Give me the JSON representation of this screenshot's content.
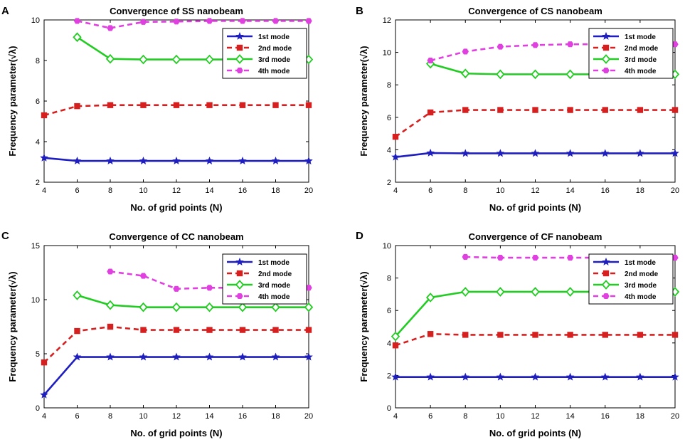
{
  "chart_data": [
    {
      "type": "line",
      "panel_label": "A",
      "title": "Convergence of SS nanobeam",
      "xlabel": "No. of grid points (N)",
      "ylabel": "Frequency parameter(√λ)",
      "xlim": [
        4,
        20
      ],
      "ylim": [
        2,
        10
      ],
      "xticks": [
        4,
        6,
        8,
        10,
        12,
        14,
        16,
        18,
        20
      ],
      "yticks": [
        2,
        4,
        6,
        8,
        10
      ],
      "xtick_labels": [
        "4",
        "6",
        "8",
        "10",
        "12",
        "14",
        "16",
        "18",
        "20"
      ],
      "ytick_labels": [
        "2",
        "4",
        "6",
        "8",
        "10"
      ],
      "legend_position": "top-right",
      "series": [
        {
          "name": "1st mode",
          "color": "#1f1fbf",
          "line": "solid",
          "marker": "star",
          "x": [
            4,
            6,
            8,
            10,
            12,
            14,
            16,
            18,
            20
          ],
          "values": [
            3.2,
            3.05,
            3.05,
            3.05,
            3.05,
            3.05,
            3.05,
            3.05,
            3.05
          ]
        },
        {
          "name": "2nd mode",
          "color": "#d62020",
          "line": "dashed",
          "marker": "square",
          "x": [
            4,
            6,
            8,
            10,
            12,
            14,
            16,
            18,
            20
          ],
          "values": [
            5.3,
            5.75,
            5.8,
            5.8,
            5.8,
            5.8,
            5.8,
            5.8,
            5.8
          ]
        },
        {
          "name": "3rd mode",
          "color": "#22cc22",
          "line": "solid",
          "marker": "diamond",
          "x": [
            6,
            8,
            10,
            12,
            14,
            16,
            18,
            20
          ],
          "values": [
            9.15,
            8.08,
            8.05,
            8.05,
            8.05,
            8.05,
            8.05,
            8.05
          ]
        },
        {
          "name": "4th mode",
          "color": "#e040e0",
          "line": "dashed",
          "marker": "hexagon",
          "x": [
            6,
            8,
            10,
            12,
            14,
            16,
            18,
            20
          ],
          "values": [
            9.95,
            9.6,
            9.9,
            9.92,
            9.95,
            9.95,
            9.95,
            9.95
          ]
        }
      ]
    },
    {
      "type": "line",
      "panel_label": "B",
      "title": "Convergence of CS nanobeam",
      "xlabel": "No. of grid points (N)",
      "ylabel": "Frequency parameter(√λ)",
      "xlim": [
        4,
        20
      ],
      "ylim": [
        2,
        12
      ],
      "xticks": [
        4,
        6,
        8,
        10,
        12,
        14,
        16,
        18,
        20
      ],
      "yticks": [
        2,
        4,
        6,
        8,
        10,
        12
      ],
      "xtick_labels": [
        "4",
        "6",
        "8",
        "10",
        "12",
        "14",
        "16",
        "18",
        "20"
      ],
      "ytick_labels": [
        "2",
        "4",
        "6",
        "8",
        "10",
        "12"
      ],
      "legend_position": "top-right",
      "series": [
        {
          "name": "1st mode",
          "color": "#1f1fbf",
          "line": "solid",
          "marker": "star",
          "x": [
            4,
            6,
            8,
            10,
            12,
            14,
            16,
            18,
            20
          ],
          "values": [
            3.55,
            3.8,
            3.78,
            3.78,
            3.78,
            3.78,
            3.78,
            3.78,
            3.78
          ]
        },
        {
          "name": "2nd mode",
          "color": "#d62020",
          "line": "dashed",
          "marker": "square",
          "x": [
            4,
            6,
            8,
            10,
            12,
            14,
            16,
            18,
            20
          ],
          "values": [
            4.8,
            6.3,
            6.45,
            6.45,
            6.45,
            6.45,
            6.45,
            6.45,
            6.45
          ]
        },
        {
          "name": "3rd mode",
          "color": "#22cc22",
          "line": "solid",
          "marker": "diamond",
          "x": [
            6,
            8,
            10,
            12,
            14,
            16,
            18,
            20
          ],
          "values": [
            9.3,
            8.7,
            8.65,
            8.65,
            8.65,
            8.65,
            8.65,
            8.65
          ]
        },
        {
          "name": "4th mode",
          "color": "#e040e0",
          "line": "dashed",
          "marker": "hexagon",
          "x": [
            6,
            8,
            10,
            12,
            14,
            16,
            18,
            20
          ],
          "values": [
            9.5,
            10.05,
            10.35,
            10.45,
            10.5,
            10.5,
            10.5,
            10.5
          ]
        }
      ]
    },
    {
      "type": "line",
      "panel_label": "C",
      "title": "Convergence of CC nanobeam",
      "xlabel": "No. of grid points (N)",
      "ylabel": "Frequency parameter(√λ)",
      "xlim": [
        4,
        20
      ],
      "ylim": [
        0,
        15
      ],
      "xticks": [
        4,
        6,
        8,
        10,
        12,
        14,
        16,
        18,
        20
      ],
      "yticks": [
        0,
        5,
        10,
        15
      ],
      "xtick_labels": [
        "4",
        "6",
        "8",
        "10",
        "12",
        "14",
        "16",
        "18",
        "20"
      ],
      "ytick_labels": [
        "0",
        "5",
        "10",
        "15"
      ],
      "legend_position": "top-right",
      "series": [
        {
          "name": "1st mode",
          "color": "#1f1fbf",
          "line": "solid",
          "marker": "star",
          "x": [
            4,
            6,
            8,
            10,
            12,
            14,
            16,
            18,
            20
          ],
          "values": [
            1.2,
            4.7,
            4.7,
            4.7,
            4.7,
            4.7,
            4.7,
            4.7,
            4.7
          ]
        },
        {
          "name": "2nd mode",
          "color": "#d62020",
          "line": "dashed",
          "marker": "square",
          "x": [
            4,
            6,
            8,
            10,
            12,
            14,
            16,
            18,
            20
          ],
          "values": [
            4.2,
            7.1,
            7.5,
            7.2,
            7.2,
            7.2,
            7.2,
            7.2,
            7.2
          ]
        },
        {
          "name": "3rd mode",
          "color": "#22cc22",
          "line": "solid",
          "marker": "diamond",
          "x": [
            6,
            8,
            10,
            12,
            14,
            16,
            18,
            20
          ],
          "values": [
            10.4,
            9.5,
            9.3,
            9.3,
            9.3,
            9.3,
            9.3,
            9.3
          ]
        },
        {
          "name": "4th mode",
          "color": "#e040e0",
          "line": "dashed",
          "marker": "hexagon",
          "x": [
            8,
            10,
            12,
            14,
            16,
            18,
            20
          ],
          "values": [
            12.6,
            12.2,
            11.0,
            11.1,
            11.1,
            11.1,
            11.1
          ]
        }
      ]
    },
    {
      "type": "line",
      "panel_label": "D",
      "title": "Convergence of CF nanobeam",
      "xlabel": "No. of grid points (N)",
      "ylabel": "Frequency parameter(√λ)",
      "xlim": [
        4,
        20
      ],
      "ylim": [
        0,
        10
      ],
      "xticks": [
        4,
        6,
        8,
        10,
        12,
        14,
        16,
        18,
        20
      ],
      "yticks": [
        0,
        2,
        4,
        6,
        8,
        10
      ],
      "xtick_labels": [
        "4",
        "6",
        "8",
        "10",
        "12",
        "14",
        "16",
        "18",
        "20"
      ],
      "ytick_labels": [
        "0",
        "2",
        "4",
        "6",
        "8",
        "10"
      ],
      "legend_position": "top-right",
      "series": [
        {
          "name": "1st mode",
          "color": "#1f1fbf",
          "line": "solid",
          "marker": "star",
          "x": [
            4,
            6,
            8,
            10,
            12,
            14,
            16,
            18,
            20
          ],
          "values": [
            1.9,
            1.9,
            1.9,
            1.9,
            1.9,
            1.9,
            1.9,
            1.9,
            1.9
          ]
        },
        {
          "name": "2nd mode",
          "color": "#d62020",
          "line": "dashed",
          "marker": "square",
          "x": [
            4,
            6,
            8,
            10,
            12,
            14,
            16,
            18,
            20
          ],
          "values": [
            3.85,
            4.55,
            4.5,
            4.5,
            4.5,
            4.5,
            4.5,
            4.5,
            4.5
          ]
        },
        {
          "name": "3rd mode",
          "color": "#22cc22",
          "line": "solid",
          "marker": "diamond",
          "x": [
            4,
            6,
            8,
            10,
            12,
            14,
            16,
            18,
            20
          ],
          "values": [
            4.4,
            6.8,
            7.15,
            7.15,
            7.15,
            7.15,
            7.15,
            7.15,
            7.15
          ]
        },
        {
          "name": "4th mode",
          "color": "#e040e0",
          "line": "dashed",
          "marker": "hexagon",
          "x": [
            8,
            10,
            12,
            14,
            16,
            18,
            20
          ],
          "values": [
            9.3,
            9.25,
            9.25,
            9.25,
            9.25,
            9.25,
            9.25
          ]
        }
      ]
    }
  ]
}
